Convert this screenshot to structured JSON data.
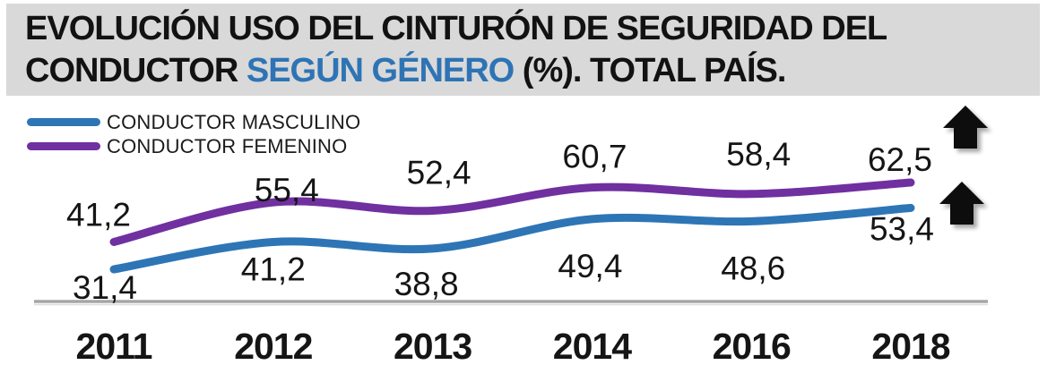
{
  "title": {
    "line1": "EVOLUCIÓN USO DEL CINTURÓN DE SEGURIDAD DEL",
    "line2_prefix": "CONDUCTOR ",
    "line2_highlight": "SEGÚN GÉNERO",
    "line2_suffix": " (%). TOTAL PAÍS."
  },
  "colors": {
    "title_bg": "#D9D9D9",
    "title_text": "#121212",
    "title_highlight": "#2E74B5",
    "masculino": "#2E75B6",
    "femenino": "#7030A0",
    "axis": "#A6A6A6",
    "arrow": "#0B0B0B"
  },
  "legend": {
    "items": [
      {
        "label": "CONDUCTOR MASCULINO",
        "color_key": "masculino"
      },
      {
        "label": "CONDUCTOR FEMENINO",
        "color_key": "femenino"
      }
    ]
  },
  "chart_data": {
    "type": "line",
    "title": "EVOLUCIÓN USO DEL CINTURÓN DE SEGURIDAD DEL CONDUCTOR SEGÚN GÉNERO (%). TOTAL PAÍS.",
    "categories": [
      "2011",
      "2012",
      "2013",
      "2014",
      "2016",
      "2018"
    ],
    "series": [
      {
        "name": "CONDUCTOR MASCULINO",
        "color": "#2E75B6",
        "values": [
          31.4,
          41.2,
          38.8,
          49.4,
          48.6,
          53.4
        ],
        "point_labels": [
          "31,4",
          "41,2",
          "38,8",
          "49,4",
          "48,6",
          "53,4"
        ],
        "label_side": "below"
      },
      {
        "name": "CONDUCTOR FEMENINO",
        "color": "#7030A0",
        "values": [
          41.2,
          55.4,
          52.4,
          60.7,
          58.4,
          62.5
        ],
        "point_labels": [
          "41,2",
          "55,4",
          "52,4",
          "60,7",
          "58,4",
          "62,5"
        ],
        "label_side": "above"
      }
    ],
    "xlabel": "",
    "ylabel": "",
    "unit": "%",
    "ylim": [
      25,
      70
    ],
    "grid": false,
    "smooth": true,
    "legend_position": "top-left",
    "annotations": [
      {
        "type": "up-arrow",
        "target": "last point CONDUCTOR FEMENINO (62,5)"
      },
      {
        "type": "up-arrow",
        "target": "last point CONDUCTOR MASCULINO (53,4)"
      }
    ]
  }
}
